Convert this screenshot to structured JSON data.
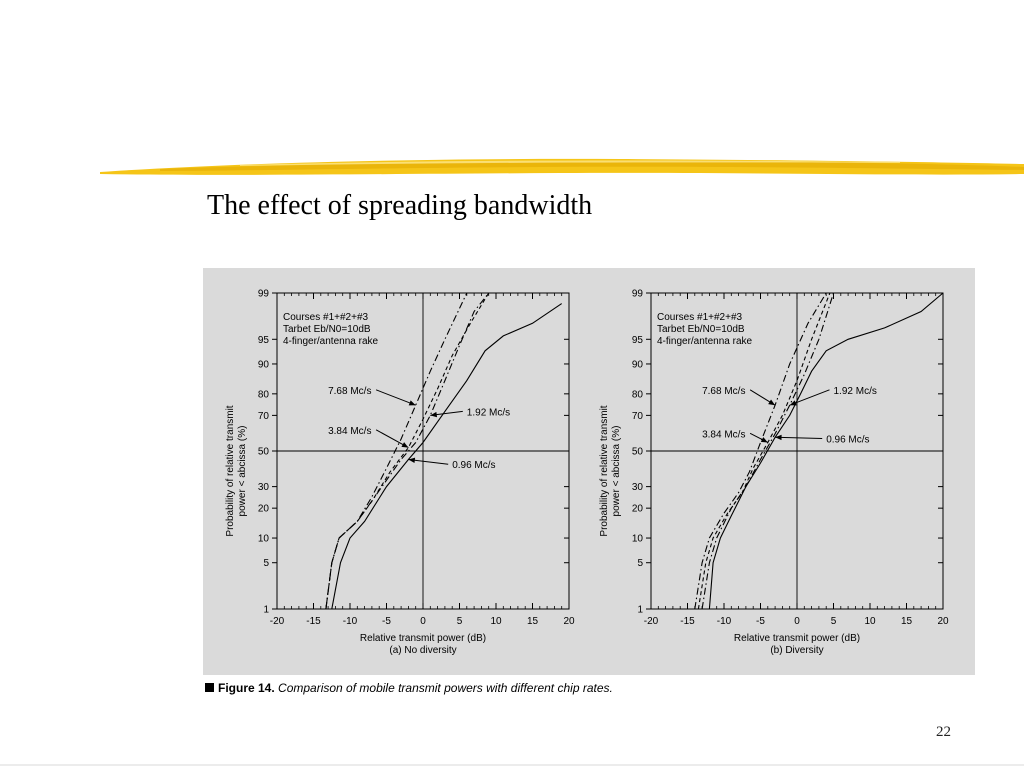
{
  "slide": {
    "title": "The effect of spreading bandwidth",
    "page_number": "22",
    "accent_color": "#f5c518"
  },
  "figure": {
    "caption_label": "Figure 14.",
    "caption_text": "Comparison of mobile transmit powers with different chip rates.",
    "panel_color": "#dadada"
  },
  "chart_data": [
    {
      "type": "line",
      "subtitle": "(a) No diversity",
      "xlabel": "Relative transmit power (dB)",
      "ylabel": "Probability of relative transmit power < abcissa (%)",
      "xlim": [
        -20,
        20
      ],
      "y_scale": "probability",
      "x_ticks": [
        "-20",
        "-15",
        "-10",
        "-5",
        "0",
        "5",
        "10",
        "15",
        "20"
      ],
      "y_ticks": [
        "1",
        "5",
        "10",
        "20",
        "30",
        "50",
        "70",
        "80",
        "90",
        "95",
        "99"
      ],
      "annotation_lines": [
        "Courses #1+#2+#3",
        "Tarbet Eb/N0=10dB",
        "4-finger/antenna rake"
      ],
      "reference_lines": {
        "x": 0,
        "y": 50
      },
      "series": [
        {
          "name": "7.68 Mc/s",
          "style": "dash-dot",
          "points": [
            [
              -13.3,
              1
            ],
            [
              -12.5,
              5
            ],
            [
              -11.5,
              10
            ],
            [
              -9,
              15
            ],
            [
              -7,
              25
            ],
            [
              -5,
              40
            ],
            [
              -3,
              57
            ],
            [
              -1,
              75
            ],
            [
              1,
              88
            ],
            [
              3,
              95
            ],
            [
              6,
              99
            ]
          ]
        },
        {
          "name": "3.84 Mc/s",
          "style": "dashed",
          "points": [
            [
              -13.3,
              1
            ],
            [
              -12.5,
              5
            ],
            [
              -11.5,
              10
            ],
            [
              -9,
              15
            ],
            [
              -7,
              23
            ],
            [
              -4.5,
              38
            ],
            [
              -2,
              52
            ],
            [
              0,
              68
            ],
            [
              2,
              82
            ],
            [
              4,
              92
            ],
            [
              6.5,
              97
            ],
            [
              9,
              99
            ]
          ]
        },
        {
          "name": "1.92 Mc/s",
          "style": "dash-dot",
          "points": [
            [
              -13.3,
              1
            ],
            [
              -12.5,
              5
            ],
            [
              -11.5,
              10
            ],
            [
              -9,
              15
            ],
            [
              -6,
              28
            ],
            [
              -3,
              45
            ],
            [
              -1,
              55
            ],
            [
              1,
              70
            ],
            [
              3,
              85
            ],
            [
              5,
              94
            ],
            [
              7,
              98
            ],
            [
              9,
              99
            ]
          ]
        },
        {
          "name": "0.96 Mc/s",
          "style": "solid",
          "points": [
            [
              -12.5,
              1
            ],
            [
              -11.3,
              5
            ],
            [
              -10,
              10
            ],
            [
              -8,
              15
            ],
            [
              -5,
              30
            ],
            [
              -2,
              45
            ],
            [
              0,
              55
            ],
            [
              3,
              72
            ],
            [
              6,
              85
            ],
            [
              8.5,
              93
            ],
            [
              11,
              95.5
            ],
            [
              15,
              97
            ],
            [
              19,
              98.5
            ]
          ]
        }
      ],
      "labels": [
        {
          "text": "7.68 Mc/s",
          "x": -13,
          "y": 80
        },
        {
          "text": "3.84 Mc/s",
          "x": -13,
          "y": 60
        },
        {
          "text": "1.92 Mc/s",
          "x": 6,
          "y": 70
        },
        {
          "text": "0.96 Mc/s",
          "x": 4,
          "y": 40
        }
      ]
    },
    {
      "type": "line",
      "subtitle": "(b) Diversity",
      "xlabel": "Relative transmit power (dB)",
      "ylabel": "Probability of relative transmit power < abcissa (%)",
      "xlim": [
        -20,
        20
      ],
      "y_scale": "probability",
      "x_ticks": [
        "-20",
        "-15",
        "-10",
        "-5",
        "0",
        "5",
        "10",
        "15",
        "20"
      ],
      "y_ticks": [
        "1",
        "5",
        "10",
        "20",
        "30",
        "50",
        "70",
        "80",
        "90",
        "95",
        "99"
      ],
      "annotation_lines": [
        "Courses #1+#2+#3",
        "Tarbet Eb/N0=10dB",
        "4-finger/antenna rake"
      ],
      "reference_lines": {
        "x": 0,
        "y": 50
      },
      "series": [
        {
          "name": "7.68 Mc/s",
          "style": "dash-dot",
          "points": [
            [
              -14,
              1
            ],
            [
              -13,
              5
            ],
            [
              -12,
              10
            ],
            [
              -10,
              18
            ],
            [
              -8,
              27
            ],
            [
              -6.5,
              38
            ],
            [
              -5,
              55
            ],
            [
              -3,
              75
            ],
            [
              -1,
              90
            ],
            [
              1.5,
              97
            ],
            [
              4,
              99
            ]
          ]
        },
        {
          "name": "3.84 Mc/s",
          "style": "dashed",
          "points": [
            [
              -13.5,
              1
            ],
            [
              -12.5,
              5
            ],
            [
              -11.5,
              10
            ],
            [
              -9.5,
              18
            ],
            [
              -7.5,
              27
            ],
            [
              -6,
              40
            ],
            [
              -4,
              55
            ],
            [
              -2,
              70
            ],
            [
              0,
              85
            ],
            [
              2,
              95
            ],
            [
              4.5,
              99
            ]
          ]
        },
        {
          "name": "1.92 Mc/s",
          "style": "dash-dot",
          "points": [
            [
              -13,
              1
            ],
            [
              -12,
              5
            ],
            [
              -11,
              10
            ],
            [
              -9,
              20
            ],
            [
              -7,
              30
            ],
            [
              -5,
              45
            ],
            [
              -3,
              60
            ],
            [
              -1,
              75
            ],
            [
              1,
              87
            ],
            [
              3,
              95
            ],
            [
              5,
              99
            ]
          ]
        },
        {
          "name": "0.96 Mc/s",
          "style": "solid",
          "points": [
            [
              -12,
              1
            ],
            [
              -11.5,
              5
            ],
            [
              -10.5,
              10
            ],
            [
              -9,
              17
            ],
            [
              -7,
              30
            ],
            [
              -5,
              43
            ],
            [
              -3,
              58
            ],
            [
              -1,
              70
            ],
            [
              0.5,
              80
            ],
            [
              2,
              88
            ],
            [
              4,
              93
            ],
            [
              7,
              95
            ],
            [
              12,
              96.5
            ],
            [
              17,
              98
            ],
            [
              20,
              99
            ]
          ]
        }
      ],
      "labels": [
        {
          "text": "7.68 Mc/s",
          "x": -13,
          "y": 80
        },
        {
          "text": "3.84 Mc/s",
          "x": -13,
          "y": 58
        },
        {
          "text": "1.92 Mc/s",
          "x": 5,
          "y": 80
        },
        {
          "text": "0.96 Mc/s",
          "x": 4,
          "y": 55
        }
      ]
    }
  ]
}
